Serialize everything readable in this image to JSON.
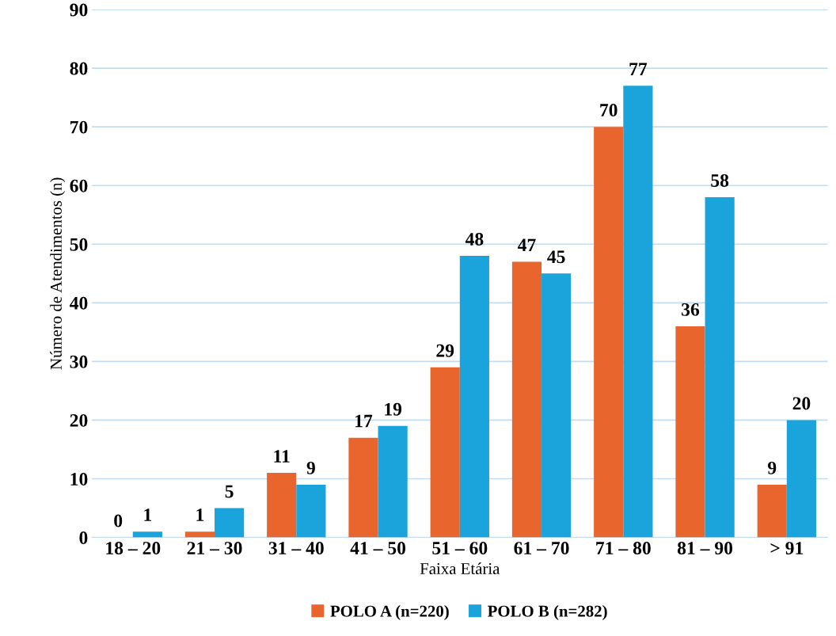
{
  "chart_data": {
    "type": "bar",
    "xlabel": "Faixa Etária",
    "ylabel": "Número de Atendimentos (n)",
    "categories": [
      "18 – 20",
      "21 – 30",
      "31 – 40",
      "41 – 50",
      "51 – 60",
      "61 – 70",
      "71 – 80",
      "81 – 90",
      "> 91"
    ],
    "series": [
      {
        "name": "POLO A (n=220)",
        "color": "#e8662e",
        "values": [
          0,
          1,
          11,
          17,
          29,
          47,
          70,
          36,
          9
        ]
      },
      {
        "name": "POLO B (n=282)",
        "color": "#1ba4dc",
        "values": [
          1,
          5,
          9,
          19,
          48,
          45,
          77,
          58,
          20
        ]
      }
    ],
    "ylim": [
      0,
      90
    ],
    "yticks": [
      0,
      10,
      20,
      30,
      40,
      50,
      60,
      70,
      80,
      90
    ],
    "grid": "y",
    "legend": "bottom",
    "data_labels": true
  }
}
